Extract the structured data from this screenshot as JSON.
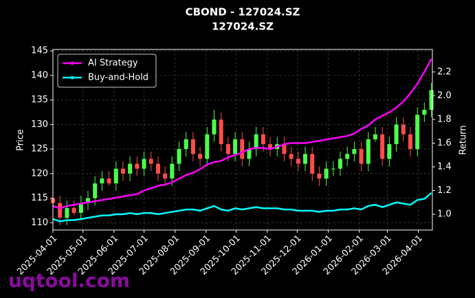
{
  "chart_data": {
    "type": "candlestick",
    "title": "CBOND - 127024.SZ",
    "subtitle": "127024.SZ",
    "ylabel": "Price",
    "y2label": "Return",
    "watermark": "uqtool.com",
    "x": [
      "2025-04-01",
      "2025-04-08",
      "2025-04-15",
      "2025-04-22",
      "2025-04-29",
      "2025-05-06",
      "2025-05-13",
      "2025-05-20",
      "2025-05-27",
      "2025-06-03",
      "2025-06-10",
      "2025-06-17",
      "2025-06-24",
      "2025-07-01",
      "2025-07-08",
      "2025-07-15",
      "2025-07-22",
      "2025-07-29",
      "2025-08-05",
      "2025-08-12",
      "2025-08-19",
      "2025-08-26",
      "2025-09-02",
      "2025-09-09",
      "2025-09-16",
      "2025-09-23",
      "2025-09-30",
      "2025-10-07",
      "2025-10-14",
      "2025-10-21",
      "2025-10-28",
      "2025-11-04",
      "2025-11-11",
      "2025-11-18",
      "2025-11-25",
      "2025-12-02",
      "2025-12-09",
      "2025-12-16",
      "2025-12-23",
      "2025-12-30",
      "2026-01-06",
      "2026-01-13",
      "2026-01-20",
      "2026-01-27",
      "2026-02-03",
      "2026-02-10",
      "2026-02-17",
      "2026-02-24",
      "2026-03-03",
      "2026-03-10",
      "2026-03-17",
      "2026-03-24",
      "2026-03-31",
      "2026-04-07",
      "2026-04-14"
    ],
    "open": [
      115,
      114,
      111,
      113,
      112,
      114,
      115,
      118,
      119,
      118,
      121,
      120,
      122,
      121,
      123,
      122,
      120,
      119,
      122,
      125,
      127,
      124,
      123,
      128,
      131,
      126,
      124,
      127,
      123,
      125,
      128,
      126,
      125,
      126,
      124,
      123,
      122,
      124,
      120,
      119,
      121,
      121,
      123,
      124,
      125,
      122,
      127,
      128,
      123,
      126,
      130,
      128,
      125,
      132,
      133
    ],
    "high": [
      116.5,
      115.5,
      114.5,
      114.5,
      115.5,
      116.5,
      119.5,
      120.5,
      120.5,
      122.5,
      122.5,
      123.5,
      123.5,
      124.5,
      124.5,
      123.5,
      121.5,
      123.5,
      126.5,
      128.5,
      128.5,
      125.5,
      129.5,
      133,
      132.5,
      127.5,
      128.5,
      128.5,
      126.5,
      129.5,
      129.5,
      127.5,
      127.5,
      127.5,
      125.5,
      124.5,
      125.5,
      125.5,
      121.5,
      122.5,
      122.5,
      124.5,
      125.5,
      126.5,
      126.5,
      128.5,
      129.5,
      129.5,
      127.5,
      131.5,
      131.5,
      129.5,
      133.5,
      134.5,
      138.5
    ],
    "low": [
      113.5,
      109.5,
      109.5,
      111.5,
      110.5,
      112.5,
      113.5,
      116.5,
      117.5,
      116.5,
      118.5,
      118.5,
      119.5,
      119.5,
      120.5,
      118.5,
      117.5,
      117.5,
      120.5,
      123.5,
      122.5,
      121.5,
      121.5,
      126.5,
      124.5,
      122.5,
      122.5,
      121.5,
      121.5,
      123.5,
      124.5,
      123.5,
      123.5,
      122.5,
      121.5,
      120.5,
      120.5,
      118.5,
      117.5,
      117.5,
      119.5,
      119.5,
      121.5,
      122.5,
      120.5,
      120.5,
      126.5,
      121.5,
      121.5,
      124.5,
      126.5,
      123.5,
      123.5,
      130.5,
      131.5
    ],
    "close": [
      114,
      111,
      113,
      112,
      114,
      115,
      118,
      119,
      118,
      121,
      120,
      122,
      121,
      123,
      122,
      120,
      119,
      122,
      125,
      127,
      124,
      123,
      128,
      131,
      126,
      124,
      127,
      123,
      125,
      128,
      126,
      125,
      126,
      124,
      123,
      122,
      124,
      120,
      119,
      121,
      121,
      123,
      124,
      125,
      122,
      127,
      128,
      123,
      126,
      130,
      128,
      125,
      132,
      133,
      137
    ],
    "up_color": "#4cff4c",
    "down_color": "#ff4c4c",
    "series": [
      {
        "name": "AI Strategy",
        "color": "#ff00ff",
        "axis": "y2",
        "values": [
          1.07,
          1.05,
          1.07,
          1.08,
          1.09,
          1.1,
          1.11,
          1.12,
          1.13,
          1.14,
          1.15,
          1.16,
          1.17,
          1.2,
          1.22,
          1.24,
          1.25,
          1.27,
          1.3,
          1.33,
          1.35,
          1.38,
          1.42,
          1.44,
          1.45,
          1.48,
          1.5,
          1.52,
          1.55,
          1.56,
          1.56,
          1.55,
          1.57,
          1.59,
          1.6,
          1.6,
          1.6,
          1.61,
          1.62,
          1.63,
          1.64,
          1.65,
          1.66,
          1.68,
          1.72,
          1.75,
          1.8,
          1.83,
          1.86,
          1.9,
          1.95,
          2.02,
          2.1,
          2.2,
          2.31
        ]
      },
      {
        "name": "Buy-and-Hold",
        "color": "#00ffff",
        "axis": "y2",
        "values": [
          0.96,
          0.94,
          0.95,
          0.95,
          0.96,
          0.97,
          0.98,
          0.99,
          0.99,
          1.0,
          1.0,
          1.01,
          1.0,
          1.01,
          1.01,
          1.0,
          1.01,
          1.02,
          1.03,
          1.04,
          1.04,
          1.03,
          1.05,
          1.07,
          1.04,
          1.03,
          1.05,
          1.04,
          1.05,
          1.06,
          1.05,
          1.05,
          1.05,
          1.04,
          1.04,
          1.03,
          1.03,
          1.03,
          1.02,
          1.03,
          1.03,
          1.04,
          1.04,
          1.05,
          1.04,
          1.07,
          1.08,
          1.06,
          1.08,
          1.1,
          1.09,
          1.08,
          1.12,
          1.13,
          1.18
        ]
      }
    ],
    "xlim": [
      "2025-04-01",
      "2026-04-15"
    ],
    "xticks": [
      "2025-04-01",
      "2025-05-01",
      "2025-06-01",
      "2025-07-01",
      "2025-08-01",
      "2025-09-01",
      "2025-10-01",
      "2025-11-01",
      "2025-12-01",
      "2026-01-01",
      "2026-02-01",
      "2026-03-01",
      "2026-04-01"
    ],
    "ylim": [
      108.5,
      145.3
    ],
    "yticks": [
      110,
      115,
      120,
      125,
      130,
      135,
      140,
      145
    ],
    "y2lim": [
      0.867,
      2.39
    ],
    "y2ticks": [
      {
        "value": 1,
        "label": "1.0"
      },
      1.2,
      1.4,
      1.6,
      1.8,
      {
        "value": 2,
        "label": "2.0"
      },
      2.2
    ],
    "grid": true,
    "legend": "upper left"
  }
}
